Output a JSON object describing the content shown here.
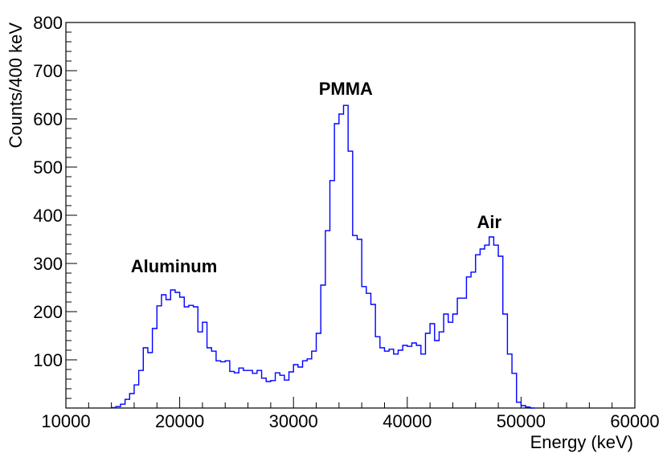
{
  "chart_data": {
    "type": "histogram",
    "title": "",
    "xlabel": "Energy (keV)",
    "ylabel": "Counts/400 keV",
    "xlim": [
      10000,
      60000
    ],
    "ylim": [
      0,
      800
    ],
    "bin_width": 400,
    "line_color": "#0000ff",
    "grid": false,
    "x_ticks": [
      "10000",
      "20000",
      "30000",
      "40000",
      "50000",
      "60000"
    ],
    "y_ticks": [
      "100",
      "200",
      "300",
      "400",
      "500",
      "600",
      "700",
      "800"
    ],
    "annotations": [
      {
        "text": "Aluminum",
        "x": 19500,
        "y": 282
      },
      {
        "text": "PMMA",
        "x": 34600,
        "y": 650
      },
      {
        "text": "Air",
        "x": 47200,
        "y": 373
      }
    ],
    "bins": [
      {
        "x": 14000,
        "y": 1
      },
      {
        "x": 14400,
        "y": 3
      },
      {
        "x": 14800,
        "y": 8
      },
      {
        "x": 15200,
        "y": 18
      },
      {
        "x": 15600,
        "y": 30
      },
      {
        "x": 16000,
        "y": 48
      },
      {
        "x": 16400,
        "y": 78
      },
      {
        "x": 16800,
        "y": 125
      },
      {
        "x": 17200,
        "y": 115
      },
      {
        "x": 17600,
        "y": 165
      },
      {
        "x": 18000,
        "y": 212
      },
      {
        "x": 18400,
        "y": 235
      },
      {
        "x": 18800,
        "y": 225
      },
      {
        "x": 19200,
        "y": 245
      },
      {
        "x": 19600,
        "y": 240
      },
      {
        "x": 20000,
        "y": 230
      },
      {
        "x": 20400,
        "y": 210
      },
      {
        "x": 20800,
        "y": 213
      },
      {
        "x": 21200,
        "y": 210
      },
      {
        "x": 21600,
        "y": 158
      },
      {
        "x": 22000,
        "y": 178
      },
      {
        "x": 22400,
        "y": 125
      },
      {
        "x": 22800,
        "y": 118
      },
      {
        "x": 23200,
        "y": 98
      },
      {
        "x": 23600,
        "y": 96
      },
      {
        "x": 24000,
        "y": 98
      },
      {
        "x": 24400,
        "y": 76
      },
      {
        "x": 24800,
        "y": 73
      },
      {
        "x": 25200,
        "y": 83
      },
      {
        "x": 25600,
        "y": 78
      },
      {
        "x": 26000,
        "y": 78
      },
      {
        "x": 26400,
        "y": 72
      },
      {
        "x": 26800,
        "y": 78
      },
      {
        "x": 27200,
        "y": 62
      },
      {
        "x": 27600,
        "y": 55
      },
      {
        "x": 28000,
        "y": 57
      },
      {
        "x": 28400,
        "y": 73
      },
      {
        "x": 28800,
        "y": 68
      },
      {
        "x": 29200,
        "y": 58
      },
      {
        "x": 29600,
        "y": 75
      },
      {
        "x": 30000,
        "y": 90
      },
      {
        "x": 30400,
        "y": 85
      },
      {
        "x": 30800,
        "y": 98
      },
      {
        "x": 31200,
        "y": 102
      },
      {
        "x": 31600,
        "y": 118
      },
      {
        "x": 32000,
        "y": 155
      },
      {
        "x": 32400,
        "y": 255
      },
      {
        "x": 32800,
        "y": 368
      },
      {
        "x": 33200,
        "y": 472
      },
      {
        "x": 33600,
        "y": 590
      },
      {
        "x": 34000,
        "y": 610
      },
      {
        "x": 34400,
        "y": 628
      },
      {
        "x": 34800,
        "y": 533
      },
      {
        "x": 35200,
        "y": 358
      },
      {
        "x": 35600,
        "y": 350
      },
      {
        "x": 36000,
        "y": 252
      },
      {
        "x": 36400,
        "y": 238
      },
      {
        "x": 36800,
        "y": 215
      },
      {
        "x": 37200,
        "y": 148
      },
      {
        "x": 37600,
        "y": 125
      },
      {
        "x": 38000,
        "y": 118
      },
      {
        "x": 38400,
        "y": 122
      },
      {
        "x": 38800,
        "y": 112
      },
      {
        "x": 39200,
        "y": 120
      },
      {
        "x": 39600,
        "y": 130
      },
      {
        "x": 40000,
        "y": 128
      },
      {
        "x": 40400,
        "y": 135
      },
      {
        "x": 40800,
        "y": 130
      },
      {
        "x": 41200,
        "y": 112
      },
      {
        "x": 41600,
        "y": 155
      },
      {
        "x": 42000,
        "y": 175
      },
      {
        "x": 42400,
        "y": 140
      },
      {
        "x": 42800,
        "y": 158
      },
      {
        "x": 43200,
        "y": 195
      },
      {
        "x": 43600,
        "y": 178
      },
      {
        "x": 44000,
        "y": 195
      },
      {
        "x": 44400,
        "y": 228
      },
      {
        "x": 44800,
        "y": 228
      },
      {
        "x": 45200,
        "y": 272
      },
      {
        "x": 45600,
        "y": 282
      },
      {
        "x": 46000,
        "y": 318
      },
      {
        "x": 46400,
        "y": 330
      },
      {
        "x": 46800,
        "y": 338
      },
      {
        "x": 47200,
        "y": 355
      },
      {
        "x": 47600,
        "y": 338
      },
      {
        "x": 48000,
        "y": 315
      },
      {
        "x": 48400,
        "y": 195
      },
      {
        "x": 48800,
        "y": 112
      },
      {
        "x": 49200,
        "y": 72
      },
      {
        "x": 49600,
        "y": 12
      },
      {
        "x": 50000,
        "y": 5
      },
      {
        "x": 50400,
        "y": 2
      },
      {
        "x": 50800,
        "y": 0
      }
    ]
  }
}
